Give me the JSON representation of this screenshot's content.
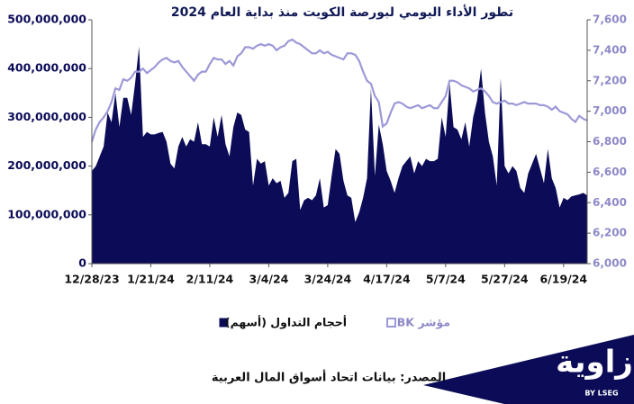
{
  "chart_data": {
    "type": "area-line",
    "title": "تطور الأداء اليومي لبورصة الكويت منذ بداية العام 2024",
    "source": "المصدر: بيانات اتحاد أسواق المال العربية",
    "categories": [
      "12/28/23",
      null,
      null,
      null,
      null,
      null,
      null,
      null,
      null,
      null,
      null,
      null,
      null,
      null,
      null,
      "1/21/24",
      null,
      null,
      null,
      null,
      null,
      null,
      null,
      null,
      null,
      null,
      null,
      null,
      null,
      null,
      "2/11/24",
      null,
      null,
      null,
      null,
      null,
      null,
      null,
      null,
      null,
      null,
      null,
      null,
      null,
      null,
      "3/4/24",
      null,
      null,
      null,
      null,
      null,
      null,
      null,
      null,
      null,
      null,
      null,
      null,
      null,
      null,
      "3/24/24",
      null,
      null,
      null,
      null,
      null,
      null,
      null,
      null,
      null,
      null,
      null,
      null,
      null,
      null,
      "4/17/24",
      null,
      null,
      null,
      null,
      null,
      null,
      null,
      null,
      null,
      null,
      null,
      null,
      null,
      null,
      "5/7/24",
      null,
      null,
      null,
      null,
      null,
      null,
      null,
      null,
      null,
      null,
      null,
      null,
      null,
      null,
      "5/27/24",
      null,
      null,
      null,
      null,
      null,
      null,
      null,
      null,
      null,
      null,
      null,
      null,
      null,
      null,
      "6/19/24",
      null,
      null,
      null,
      null,
      null,
      null
    ],
    "series": [
      {
        "name": "أحجام التداول (أسهم)",
        "color": "#0b0b57",
        "axis": "y",
        "values": [
          190000000,
          200000000,
          220000000,
          240000000,
          310000000,
          290000000,
          350000000,
          280000000,
          340000000,
          340000000,
          305000000,
          370000000,
          445000000,
          260000000,
          270000000,
          265000000,
          265000000,
          268000000,
          270000000,
          250000000,
          205000000,
          195000000,
          240000000,
          260000000,
          240000000,
          255000000,
          250000000,
          290000000,
          245000000,
          245000000,
          240000000,
          300000000,
          260000000,
          305000000,
          245000000,
          220000000,
          280000000,
          310000000,
          305000000,
          275000000,
          270000000,
          160000000,
          215000000,
          205000000,
          210000000,
          160000000,
          175000000,
          165000000,
          170000000,
          135000000,
          145000000,
          210000000,
          215000000,
          110000000,
          130000000,
          135000000,
          130000000,
          140000000,
          175000000,
          115000000,
          120000000,
          180000000,
          235000000,
          225000000,
          170000000,
          140000000,
          135000000,
          85000000,
          105000000,
          135000000,
          175000000,
          360000000,
          180000000,
          285000000,
          245000000,
          190000000,
          170000000,
          145000000,
          175000000,
          200000000,
          210000000,
          220000000,
          185000000,
          210000000,
          200000000,
          215000000,
          210000000,
          210000000,
          215000000,
          300000000,
          260000000,
          370000000,
          280000000,
          275000000,
          255000000,
          290000000,
          240000000,
          300000000,
          335000000,
          400000000,
          310000000,
          250000000,
          220000000,
          160000000,
          380000000,
          200000000,
          185000000,
          200000000,
          190000000,
          155000000,
          145000000,
          185000000,
          205000000,
          225000000,
          195000000,
          165000000,
          235000000,
          175000000,
          155000000,
          115000000,
          135000000,
          130000000,
          138000000,
          140000000,
          142000000,
          145000000,
          140000000
        ]
      },
      {
        "name": "مؤشر BK",
        "color": "#9d99d8",
        "axis": "y2",
        "values": [
          6800,
          6880,
          6930,
          6960,
          7000,
          7060,
          7150,
          7140,
          7210,
          7200,
          7220,
          7260,
          7260,
          7280,
          7250,
          7270,
          7290,
          7320,
          7340,
          7350,
          7330,
          7320,
          7330,
          7290,
          7260,
          7230,
          7200,
          7240,
          7260,
          7260,
          7310,
          7350,
          7340,
          7340,
          7310,
          7330,
          7300,
          7360,
          7380,
          7420,
          7420,
          7410,
          7430,
          7440,
          7430,
          7440,
          7430,
          7400,
          7420,
          7430,
          7460,
          7470,
          7450,
          7440,
          7420,
          7400,
          7380,
          7380,
          7400,
          7380,
          7390,
          7370,
          7360,
          7350,
          7340,
          7380,
          7380,
          7370,
          7330,
          7260,
          7200,
          7180,
          7100,
          7060,
          6900,
          6920,
          6990,
          7050,
          7060,
          7050,
          7030,
          7020,
          7030,
          7040,
          7020,
          7030,
          7040,
          7020,
          7020,
          7060,
          7100,
          7200,
          7200,
          7190,
          7170,
          7160,
          7150,
          7130,
          7140,
          7150,
          7130,
          7100,
          7060,
          7050,
          7060,
          7070,
          7050,
          7050,
          7040,
          7050,
          7060,
          7050,
          7050,
          7050,
          7040,
          7040,
          7030,
          7010,
          7030,
          7000,
          6990,
          6980,
          6950,
          6930,
          6970,
          6950,
          6940
        ]
      }
    ],
    "ylim": [
      0,
      500000000
    ],
    "yticks": [
      0,
      {
        "value": 100000000,
        "label": "100,000,000"
      },
      {
        "value": 200000000,
        "label": "200,000,000"
      },
      {
        "value": 300000000,
        "label": "300,000,000"
      },
      {
        "value": 400000000,
        "label": "400,000,000"
      },
      {
        "value": 500000000,
        "label": "500,000,000"
      }
    ],
    "y2lim": [
      6000,
      7600
    ],
    "y2ticks": [
      {
        "value": 6000,
        "label": "6,000"
      },
      {
        "value": 6200,
        "label": "6,200"
      },
      {
        "value": 6400,
        "label": "6,400"
      },
      {
        "value": 6600,
        "label": "6,600"
      },
      {
        "value": 6800,
        "label": "6,800"
      },
      {
        "value": 7000,
        "label": "7,000"
      },
      {
        "value": 7200,
        "label": "7,200"
      },
      {
        "value": 7400,
        "label": "7,400"
      },
      {
        "value": 7600,
        "label": "7,600"
      }
    ],
    "legend": "bottom"
  },
  "logo": {
    "name": "زاوية",
    "tagline": "BY LSEG"
  }
}
